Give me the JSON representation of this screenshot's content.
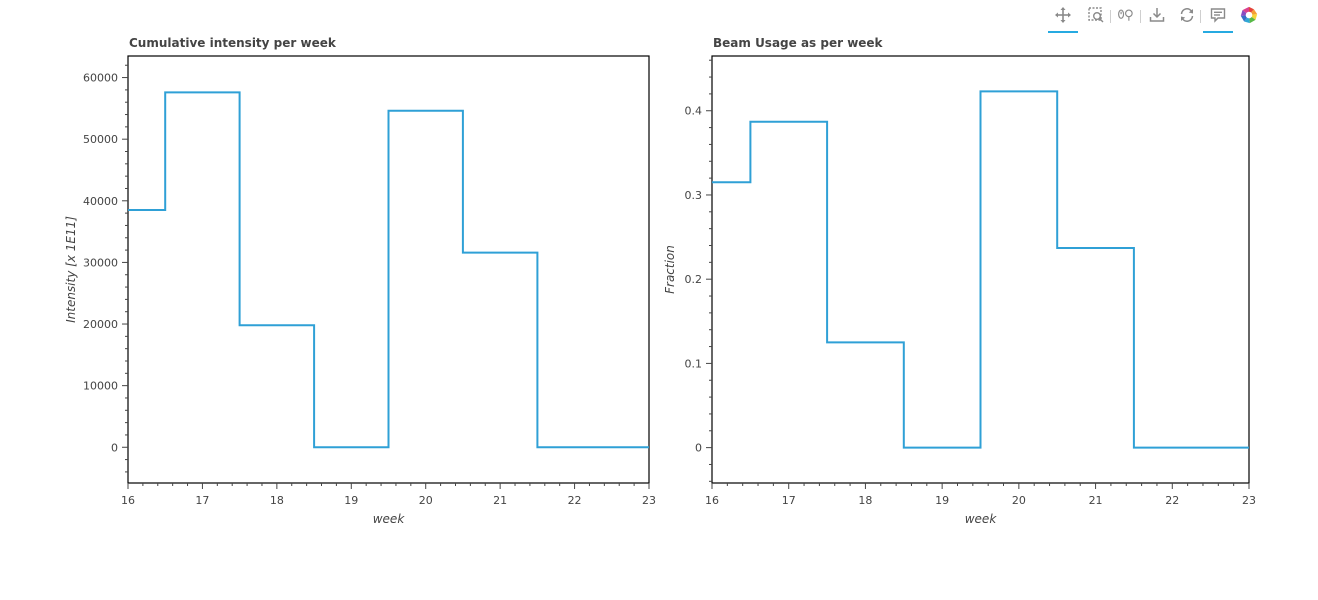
{
  "toolbar": {
    "tools": [
      {
        "name": "pan-tool-button",
        "icon": "pan-icon",
        "active": true
      },
      {
        "name": "box-zoom-tool-button",
        "icon": "box-zoom-icon",
        "active": false
      },
      {
        "name": "wheel-zoom-tool-button",
        "icon": "wheel-zoom-icon",
        "active": false
      },
      {
        "name": "save-tool-button",
        "icon": "save-icon",
        "active": false
      },
      {
        "name": "reset-tool-button",
        "icon": "reset-icon",
        "active": false
      },
      {
        "name": "hover-tool-button",
        "icon": "hover-icon",
        "active": true
      },
      {
        "name": "bokeh-logo",
        "icon": "bokeh-logo-icon",
        "active": false
      }
    ]
  },
  "colors": {
    "line": "#2fa0d6",
    "axis": "#444444",
    "toolbar_active": "#26aae1"
  },
  "chart_data": [
    {
      "type": "line",
      "step_mode": "center",
      "title": "Cumulative intensity per week",
      "xlabel": "week",
      "ylabel": "Intensity [x 1E11]",
      "xlim": [
        16,
        23
      ],
      "ylim": [
        -5800,
        63500
      ],
      "x_ticks": [
        16,
        17,
        18,
        19,
        20,
        21,
        22,
        23
      ],
      "y_ticks": [
        0,
        10000,
        20000,
        30000,
        40000,
        50000,
        60000
      ],
      "x": [
        16,
        17,
        18,
        19,
        20,
        21,
        22,
        23
      ],
      "series": [
        {
          "values": [
            38500,
            57600,
            19800,
            0,
            54600,
            31600,
            0,
            0
          ]
        }
      ],
      "grid": false
    },
    {
      "type": "line",
      "step_mode": "center",
      "title": "Beam Usage as per week",
      "xlabel": "week",
      "ylabel": "Fraction",
      "xlim": [
        16,
        23
      ],
      "ylim": [
        -0.042,
        0.465
      ],
      "x_ticks": [
        16,
        17,
        18,
        19,
        20,
        21,
        22,
        23
      ],
      "y_ticks": [
        0,
        0.1,
        0.2,
        0.3,
        0.4
      ],
      "x": [
        16,
        17,
        18,
        19,
        20,
        21,
        22,
        23
      ],
      "series": [
        {
          "values": [
            0.315,
            0.387,
            0.125,
            0,
            0.423,
            0.237,
            0,
            0
          ]
        }
      ],
      "grid": false
    }
  ]
}
